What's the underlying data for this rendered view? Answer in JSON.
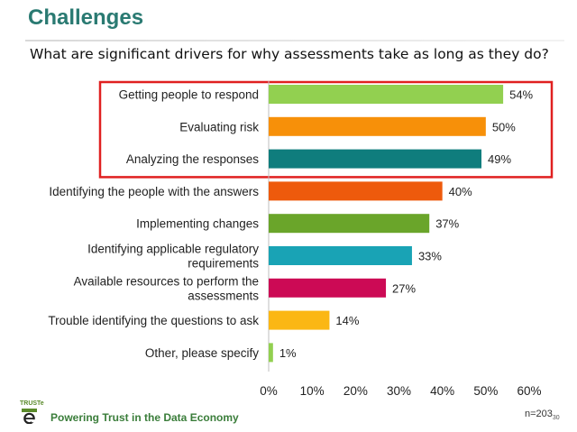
{
  "header": {
    "title": "Challenges",
    "subtitle": "What are significant drivers for why assessments take as long as they do?"
  },
  "footer": {
    "brand": "TRUSTe",
    "tagline": "Powering Trust in the Data Economy",
    "sample_size": "n=203",
    "page_number": "30"
  },
  "chart_data": {
    "type": "bar",
    "orientation": "horizontal",
    "categories": [
      "Getting people to respond",
      "Evaluating risk",
      "Analyzing the responses",
      "Identifying the people with the answers",
      "Implementing changes",
      "Identifying applicable regulatory requirements",
      "Available resources to perform the assessments",
      "Trouble identifying the questions to ask",
      "Other, please specify"
    ],
    "category_lines": [
      [
        "Getting people to respond"
      ],
      [
        "Evaluating risk"
      ],
      [
        "Analyzing the responses"
      ],
      [
        "Identifying the people with the answers"
      ],
      [
        "Implementing changes"
      ],
      [
        "Identifying applicable regulatory",
        "requirements"
      ],
      [
        "Available resources to perform the",
        "assessments"
      ],
      [
        "Trouble identifying the questions to ask"
      ],
      [
        "Other, please specify"
      ]
    ],
    "values": [
      54,
      50,
      49,
      40,
      37,
      33,
      27,
      14,
      1
    ],
    "data_labels": [
      "54%",
      "50%",
      "49%",
      "40%",
      "37%",
      "33%",
      "27%",
      "14%",
      "1%"
    ],
    "bar_colors": [
      "#92d050",
      "#f79009",
      "#0f7d7d",
      "#ee5a0c",
      "#6aa52a",
      "#19a3b5",
      "#cc0a55",
      "#fbb714",
      "#92d050"
    ],
    "xlim": [
      0,
      60
    ],
    "x_ticks": [
      "0%",
      "10%",
      "20%",
      "30%",
      "40%",
      "50%",
      "60%"
    ],
    "grid": false,
    "highlight": {
      "categories_from": 0,
      "categories_to": 2,
      "color": "#e02020"
    }
  }
}
